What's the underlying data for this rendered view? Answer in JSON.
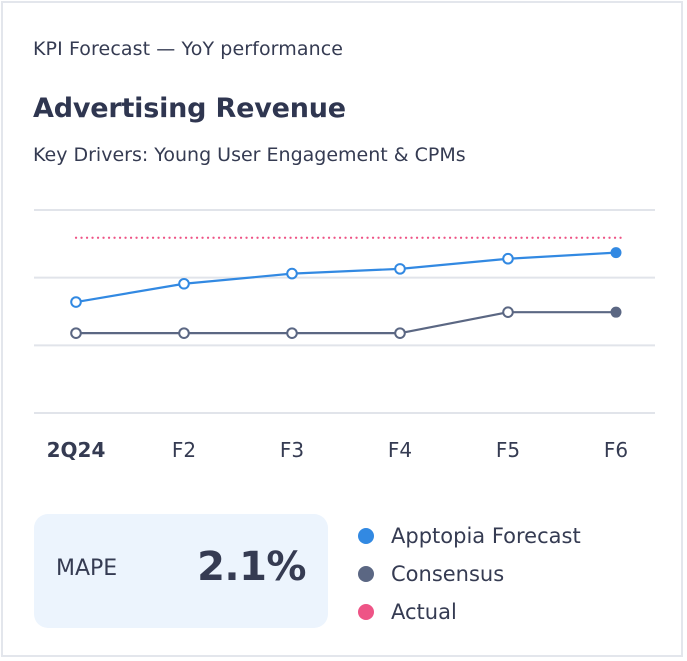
{
  "card": {
    "kicker": "KPI Forecast — YoY performance",
    "title": "Advertising Revenue",
    "subtitle": "Key Drivers: Young User Engagement & CPMs"
  },
  "colors": {
    "forecast": "#3289e2",
    "consensus": "#5b6783",
    "actual": "#ee5486",
    "grid": "#e1e4ea",
    "tick_text": "#353b52",
    "mape_bg": "#ecf4fd"
  },
  "chart_data": {
    "type": "line",
    "title": "Advertising Revenue",
    "xlabel": "",
    "ylabel": "",
    "categories": [
      "2Q24",
      "F2",
      "F3",
      "F4",
      "F5",
      "F6"
    ],
    "bold_category_index": 0,
    "ylim": [
      0,
      3
    ],
    "grid": true,
    "y_tick_labels_shown": false,
    "series": [
      {
        "name": "Apptopia Forecast",
        "key": "forecast",
        "style": "solid",
        "values": [
          1.64,
          1.91,
          2.06,
          2.13,
          2.28,
          2.37
        ],
        "filled_last_point": true
      },
      {
        "name": "Consensus",
        "key": "consensus",
        "style": "solid",
        "values": [
          1.18,
          1.18,
          1.18,
          1.18,
          1.49,
          1.49
        ],
        "filled_last_point": true
      },
      {
        "name": "Actual",
        "key": "actual",
        "style": "dotted",
        "values": [
          2.59,
          2.59,
          2.59,
          2.59,
          2.59,
          2.59
        ],
        "markers": false
      }
    ],
    "legend_placement": "bottom-right"
  },
  "mape": {
    "label": "MAPE",
    "value": "2.1%"
  },
  "legend": {
    "items": [
      {
        "label": "Apptopia Forecast",
        "key": "forecast"
      },
      {
        "label": "Consensus",
        "key": "consensus"
      },
      {
        "label": "Actual",
        "key": "actual"
      }
    ]
  }
}
